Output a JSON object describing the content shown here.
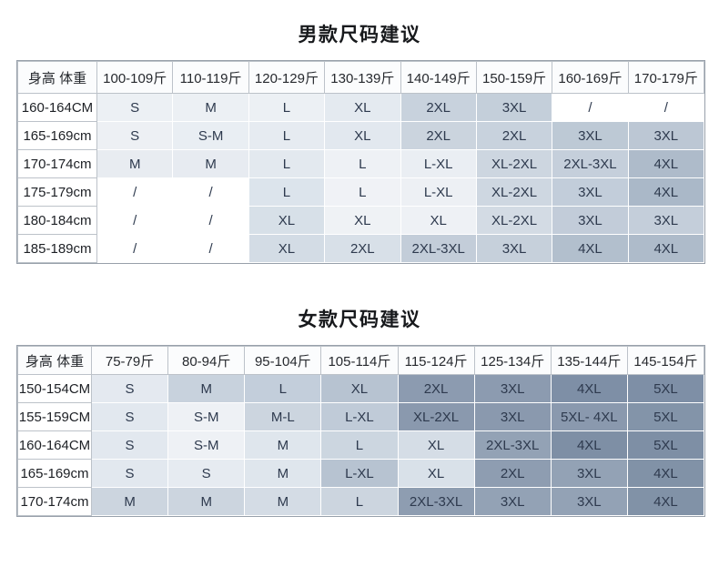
{
  "page": {
    "background": "#ffffff"
  },
  "tables": [
    {
      "id": "mens",
      "title": "男款尺码建议",
      "corner_label": "身高 体重",
      "columns": [
        "100-109斤",
        "110-119斤",
        "120-129斤",
        "130-139斤",
        "140-149斤",
        "150-159斤",
        "160-169斤",
        "170-179斤"
      ],
      "rows": [
        {
          "label": "160-164CM",
          "cells": [
            {
              "text": "S",
              "bg": "#ecf0f4"
            },
            {
              "text": "M",
              "bg": "#ecf0f4"
            },
            {
              "text": "L",
              "bg": "#ecf0f4"
            },
            {
              "text": "XL",
              "bg": "#e4eaf0"
            },
            {
              "text": "2XL",
              "bg": "#c8d2dd"
            },
            {
              "text": "3XL",
              "bg": "#c4cfda"
            },
            {
              "text": "/",
              "bg": "#ffffff"
            },
            {
              "text": "/",
              "bg": "#ffffff"
            }
          ]
        },
        {
          "label": "165-169cm",
          "cells": [
            {
              "text": "S",
              "bg": "#edf0f4"
            },
            {
              "text": "S-M",
              "bg": "#e9eef3"
            },
            {
              "text": "L",
              "bg": "#e6ebf1"
            },
            {
              "text": "XL",
              "bg": "#e2e8ef"
            },
            {
              "text": "2XL",
              "bg": "#cbd4de"
            },
            {
              "text": "2XL",
              "bg": "#c8d2dd"
            },
            {
              "text": "3XL",
              "bg": "#bdc9d5"
            },
            {
              "text": "3XL",
              "bg": "#bcc7d4"
            }
          ]
        },
        {
          "label": "170-174cm",
          "cells": [
            {
              "text": "M",
              "bg": "#e8ecf1"
            },
            {
              "text": "M",
              "bg": "#e7ebf1"
            },
            {
              "text": "L",
              "bg": "#e3e9ef"
            },
            {
              "text": "L",
              "bg": "#eef1f5"
            },
            {
              "text": "L-XL",
              "bg": "#eaeef3"
            },
            {
              "text": "XL-2XL",
              "bg": "#cdd6e0"
            },
            {
              "text": "2XL-3XL",
              "bg": "#c5cfdb"
            },
            {
              "text": "4XL",
              "bg": "#aebbca"
            }
          ]
        },
        {
          "label": "175-179cm",
          "cells": [
            {
              "text": "/",
              "bg": "#ffffff"
            },
            {
              "text": "/",
              "bg": "#ffffff"
            },
            {
              "text": "L",
              "bg": "#dce4ec"
            },
            {
              "text": "L",
              "bg": "#f0f2f6"
            },
            {
              "text": "L-XL",
              "bg": "#edf0f4"
            },
            {
              "text": "XL-2XL",
              "bg": "#ced7e1"
            },
            {
              "text": "3XL",
              "bg": "#c2cdda"
            },
            {
              "text": "4XL",
              "bg": "#aab8c8"
            }
          ]
        },
        {
          "label": "180-184cm",
          "cells": [
            {
              "text": "/",
              "bg": "#ffffff"
            },
            {
              "text": "/",
              "bg": "#ffffff"
            },
            {
              "text": "XL",
              "bg": "#d7e0e8"
            },
            {
              "text": "XL",
              "bg": "#eff2f5"
            },
            {
              "text": "XL",
              "bg": "#eef1f5"
            },
            {
              "text": "XL-2XL",
              "bg": "#d3dbe4"
            },
            {
              "text": "3XL",
              "bg": "#c2ccd9"
            },
            {
              "text": "3XL",
              "bg": "#c4ceda"
            }
          ]
        },
        {
          "label": "185-189cm",
          "cells": [
            {
              "text": "/",
              "bg": "#ffffff"
            },
            {
              "text": "/",
              "bg": "#ffffff"
            },
            {
              "text": "XL",
              "bg": "#d3dce5"
            },
            {
              "text": "2XL",
              "bg": "#d8e0e8"
            },
            {
              "text": "2XL-3XL",
              "bg": "#c3cdd9"
            },
            {
              "text": "3XL",
              "bg": "#c6d0db"
            },
            {
              "text": "4XL",
              "bg": "#b2bfcd"
            },
            {
              "text": "4XL",
              "bg": "#aebbca"
            }
          ]
        }
      ]
    },
    {
      "id": "womens",
      "title": "女款尺码建议",
      "corner_label": "身高 体重",
      "columns": [
        "75-79斤",
        "80-94斤",
        "95-104斤",
        "105-114斤",
        "115-124斤",
        "125-134斤",
        "135-144斤",
        "145-154斤"
      ],
      "rows": [
        {
          "label": "150-154CM",
          "cells": [
            {
              "text": "S",
              "bg": "#e4e9f0"
            },
            {
              "text": "M",
              "bg": "#c8d2dd"
            },
            {
              "text": "L",
              "bg": "#c3cedb"
            },
            {
              "text": "XL",
              "bg": "#b7c3d1"
            },
            {
              "text": "2XL",
              "bg": "#8c9bb0"
            },
            {
              "text": "3XL",
              "bg": "#8c9bb0"
            },
            {
              "text": "4XL",
              "bg": "#7e8fa6"
            },
            {
              "text": "5XL",
              "bg": "#7e8fa6"
            }
          ]
        },
        {
          "label": "155-159CM",
          "cells": [
            {
              "text": "S",
              "bg": "#e2e8ef"
            },
            {
              "text": "S-M",
              "bg": "#eef1f5"
            },
            {
              "text": "M-L",
              "bg": "#ccd5df"
            },
            {
              "text": "L-XL",
              "bg": "#c0cbd8"
            },
            {
              "text": "XL-2XL",
              "bg": "#8a99ae"
            },
            {
              "text": "3XL",
              "bg": "#8a99ae"
            },
            {
              "text": "5XL- 4XL",
              "bg": "#8a99ae"
            },
            {
              "text": "5XL",
              "bg": "#8394a9"
            }
          ]
        },
        {
          "label": "160-164CM",
          "cells": [
            {
              "text": "S",
              "bg": "#e2e8ef"
            },
            {
              "text": "S-M",
              "bg": "#eef1f5"
            },
            {
              "text": "M",
              "bg": "#dfe6ed"
            },
            {
              "text": "L",
              "bg": "#ccd6e0"
            },
            {
              "text": "XL",
              "bg": "#d5dde6"
            },
            {
              "text": "2XL-3XL",
              "bg": "#93a2b5"
            },
            {
              "text": "4XL",
              "bg": "#7e8fa5"
            },
            {
              "text": "5XL",
              "bg": "#7e8fa5"
            }
          ]
        },
        {
          "label": "165-169cm",
          "cells": [
            {
              "text": "S",
              "bg": "#e2e8ef"
            },
            {
              "text": "S",
              "bg": "#e6ebf1"
            },
            {
              "text": "M",
              "bg": "#dfe6ed"
            },
            {
              "text": "L-XL",
              "bg": "#b7c3d1"
            },
            {
              "text": "XL",
              "bg": "#d9e1e9"
            },
            {
              "text": "2XL",
              "bg": "#8e9db1"
            },
            {
              "text": "3XL",
              "bg": "#93a2b5"
            },
            {
              "text": "4XL",
              "bg": "#8192a7"
            }
          ]
        },
        {
          "label": "170-174cm",
          "cells": [
            {
              "text": "M",
              "bg": "#ccd5df"
            },
            {
              "text": "M",
              "bg": "#ccd5df"
            },
            {
              "text": "M",
              "bg": "#d4dce5"
            },
            {
              "text": "L",
              "bg": "#ccd5df"
            },
            {
              "text": "2XL-3XL",
              "bg": "#8e9db1"
            },
            {
              "text": "3XL",
              "bg": "#93a2b5"
            },
            {
              "text": "3XL",
              "bg": "#93a2b5"
            },
            {
              "text": "4XL",
              "bg": "#8192a7"
            }
          ]
        }
      ]
    }
  ]
}
